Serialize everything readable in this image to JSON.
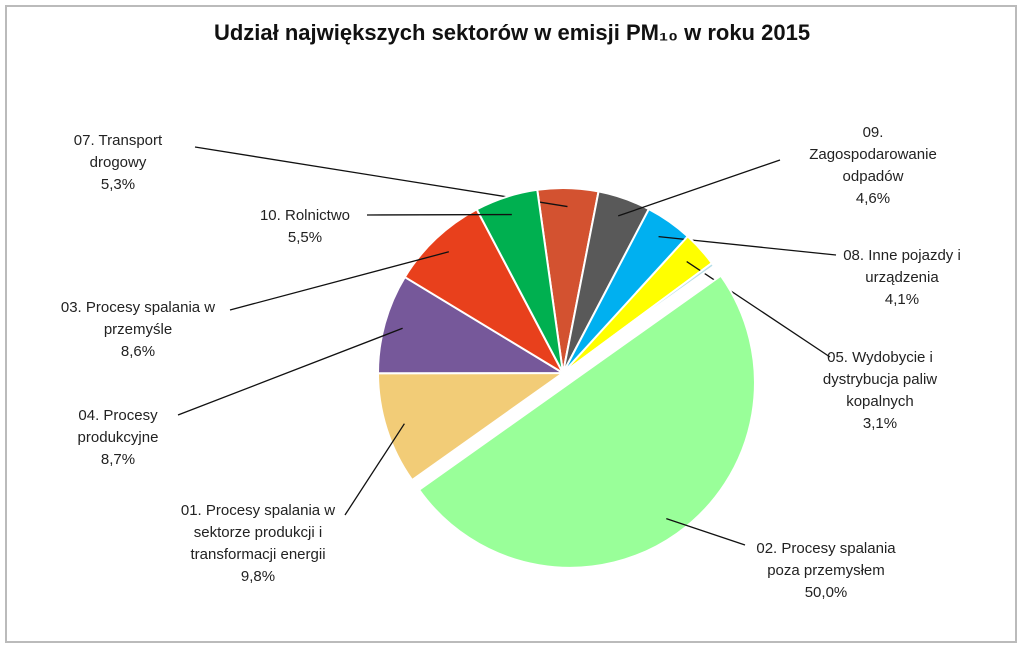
{
  "chart_data": {
    "type": "pie",
    "title": "Udział największych sektorów w emisji PM₁₀ w roku 2015",
    "categories": [
      "07. Transport drogowy",
      "09. Zagospodarowanie odpadów",
      "08. Inne pojazdy i urządzenia",
      "05. Wydobycie i dystrybucja paliw kopalnych",
      null,
      "02. Procesy spalania poza przemysłem",
      "01. Procesy spalania w sektorze produkcji i transformacji energii",
      "04. Procesy produkcyjne",
      "03. Procesy spalania w przemyśle",
      "10. Rolnictwo"
    ],
    "values": [
      5.3,
      4.6,
      4.1,
      3.1,
      0.3,
      50.0,
      9.8,
      8.7,
      8.6,
      5.5
    ],
    "value_labels": [
      "5,3%",
      "4,6%",
      "4,1%",
      "3,1%",
      null,
      "50,0%",
      "9,8%",
      "8,7%",
      "8,6%",
      "5,5%"
    ],
    "colors": [
      "#d35230",
      "#595959",
      "#00b0f0",
      "#ffff00",
      "#b7dee8",
      "#99ff99",
      "#f2cc77",
      "#76589a",
      "#e8401c",
      "#00b050"
    ]
  }
}
